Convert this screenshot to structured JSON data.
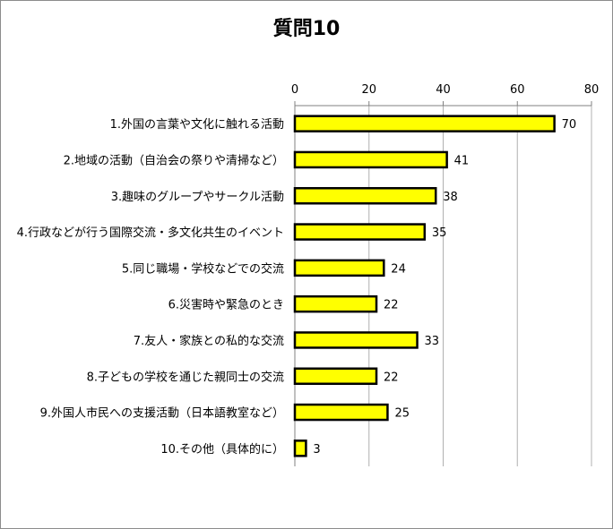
{
  "chart_data": {
    "type": "bar",
    "orientation": "horizontal",
    "title": "質問10",
    "categories": [
      "1.外国の言葉や文化に触れる活動",
      "2.地域の活動（自治会の祭りや清掃など）",
      "3.趣味のグループやサークル活動",
      "4.行政などが行う国際交流・多文化共生のイベント",
      "5.同じ職場・学校などでの交流",
      "6.災害時や緊急のとき",
      "7.友人・家族との私的な交流",
      "8.子どもの学校を通じた親同士の交流",
      "9.外国人市民への支援活動（日本語教室など）",
      "10.その他（具体的に）"
    ],
    "values": [
      70,
      41,
      38,
      35,
      24,
      22,
      33,
      22,
      25,
      3
    ],
    "xlim": [
      0,
      80
    ],
    "ticks": [
      0,
      20,
      40,
      60,
      80
    ],
    "axis_position": "top",
    "grid": true,
    "legend": "none",
    "bar_color": "#ffff00",
    "bar_border_color": "#000000",
    "grid_color": "#b0b0b0"
  }
}
